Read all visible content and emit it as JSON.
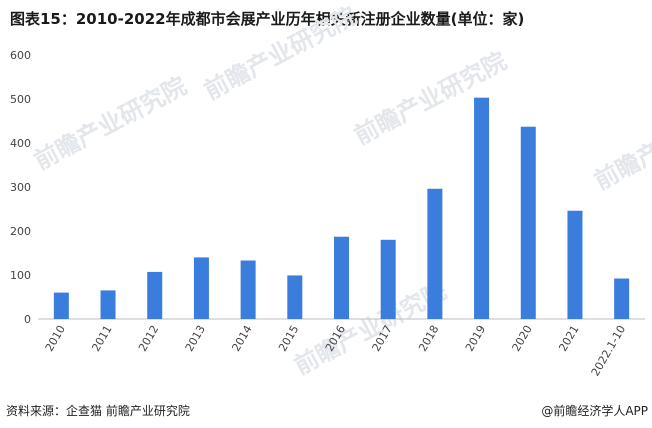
{
  "title": "图表15：2010-2022年成都市会展产业历年相关新注册企业数量(单位：家)",
  "source": "资料来源：企查猫 前瞻产业研究院",
  "brand": "@前瞻经济学人APP",
  "watermark": "前瞻产业研究院",
  "chart_data": {
    "type": "bar",
    "title": "图表15：2010-2022年成都市会展产业历年相关新注册企业数量(单位：家)",
    "categories": [
      "2010",
      "2011",
      "2012",
      "2013",
      "2014",
      "2015",
      "2016",
      "2017",
      "2018",
      "2019",
      "2020",
      "2021",
      "2022.1-10"
    ],
    "values": [
      60,
      65,
      107,
      140,
      133,
      99,
      187,
      180,
      296,
      503,
      437,
      246,
      92
    ],
    "ylim": [
      0,
      600
    ],
    "yticks": [
      0,
      100,
      200,
      300,
      400,
      500,
      600
    ],
    "grid": false,
    "bar_color": "#3b7ddd"
  }
}
